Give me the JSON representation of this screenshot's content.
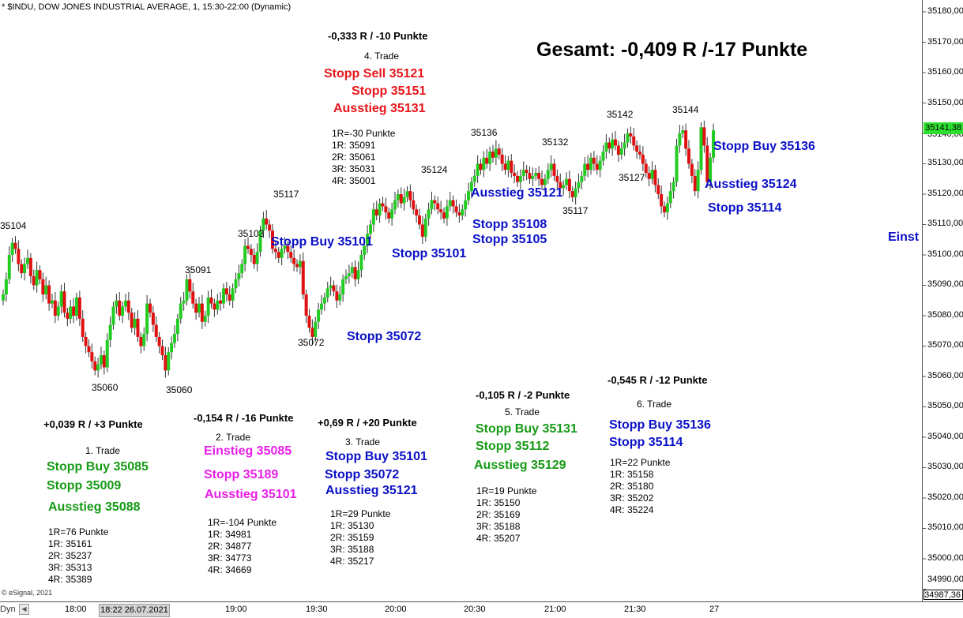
{
  "header": {
    "title": "* $INDU, DOW JONES INDUSTRIAL AVERAGE, 1, 15:30-22:00 (Dynamic)"
  },
  "footer": {
    "copyright": "© eSignal, 2021",
    "mode": "Dyn",
    "cursor_time": "18:22 26.07.2021"
  },
  "total": "Gesamt: -0,409 R /-17 Punkte",
  "price_labels": [
    {
      "text": "35104"
    },
    {
      "text": "35060"
    },
    {
      "text": "35060"
    },
    {
      "text": "35091"
    },
    {
      "text": "35103"
    },
    {
      "text": "35117"
    },
    {
      "text": "35072"
    },
    {
      "text": "35124"
    },
    {
      "text": "35136"
    },
    {
      "text": "35132"
    },
    {
      "text": "35117"
    },
    {
      "text": "35142"
    },
    {
      "text": "35127"
    },
    {
      "text": "35144"
    }
  ],
  "chart_orders": [
    {
      "text": "Stopp Buy 35101",
      "color": "blue"
    },
    {
      "text": "Stopp 35101",
      "color": "blue"
    },
    {
      "text": "Stopp 35072",
      "color": "blue"
    },
    {
      "text": "Ausstieg 35121",
      "color": "blue"
    },
    {
      "text": "Stopp 35108",
      "color": "blue"
    },
    {
      "text": "Stopp 35105",
      "color": "blue"
    },
    {
      "text": "Stopp Buy 35136",
      "color": "blue"
    },
    {
      "text": "Ausstieg 35124",
      "color": "blue"
    },
    {
      "text": "Stopp 35114",
      "color": "blue"
    },
    {
      "text": "Einst",
      "color": "blue"
    }
  ],
  "trades": [
    {
      "result": "+0,039 R / +3 Punkte",
      "name": "1. Trade",
      "color": "green",
      "orders": [
        "Stopp Buy 35085",
        "Stopp 35009",
        "Ausstieg 35088"
      ],
      "plan": "1R=76 Punkte\n1R: 35161\n2R: 35237\n3R: 35313\n4R: 35389"
    },
    {
      "result": "-0,154 R / -16 Punkte",
      "name": "2. Trade",
      "color": "magenta",
      "orders": [
        "Einstieg 35085",
        "Stopp 35189",
        "Ausstieg 35101"
      ],
      "plan": "1R=-104 Punkte\n1R: 34981\n2R: 34877\n3R: 34773\n4R: 34669"
    },
    {
      "result": "+0,69 R / +20 Punkte",
      "name": "3. Trade",
      "color": "blue",
      "orders": [
        "Stopp Buy 35101",
        "Stopp 35072",
        "Ausstieg 35121"
      ],
      "plan": "1R=29 Punkte\n1R: 35130\n2R: 35159\n3R: 35188\n4R: 35217"
    },
    {
      "result": "-0,333 R / -10 Punkte",
      "name": "4. Trade",
      "color": "red",
      "orders": [
        "Stopp Sell 35121",
        "Stopp 35151",
        "Ausstieg 35131"
      ],
      "plan": "1R=-30 Punkte\n1R: 35091\n2R: 35061\n3R: 35031\n4R: 35001"
    },
    {
      "result": "-0,105 R / -2 Punkte",
      "name": "5. Trade",
      "color": "green",
      "orders": [
        "Stopp Buy 35131",
        "Stopp 35112",
        "Ausstieg 35129"
      ],
      "plan": "1R=19 Punkte\n1R: 35150\n2R: 35169\n3R: 35188\n4R: 35207"
    },
    {
      "result": "-0,545 R / -12 Punkte",
      "name": "6. Trade",
      "color": "blue",
      "orders": [
        "Stopp Buy 35136",
        "Stopp 35114"
      ],
      "plan": "1R=22 Punkte\n1R: 35158\n2R: 35180\n3R: 35202\n4R: 35224"
    }
  ],
  "chart_data": {
    "type": "candlestick",
    "title": "* $INDU, DOW JONES INDUSTRIAL AVERAGE, 1, 15:30-22:00 (Dynamic)",
    "ylim": [
      34987.36,
      35182
    ],
    "y_ticks": [
      "35180,00",
      "35170,00",
      "35160,00",
      "35150,00",
      "35140,00",
      "35130,00",
      "35120,00",
      "35110,00",
      "35100,00",
      "35090,00",
      "35080,00",
      "35070,00",
      "35060,00",
      "35050,00",
      "35040,00",
      "35030,00",
      "35020,00",
      "35010,00",
      "35000,00",
      "34990,00"
    ],
    "y_min_label": "34987,36",
    "last_price": "35141,38",
    "x_ticks": [
      "18:00",
      "19:00",
      "19:30",
      "20:00",
      "20:30",
      "21:00",
      "21:30",
      "27"
    ],
    "up_color": "#22cc22",
    "down_color": "#e01010",
    "closes": [
      35087,
      35092,
      35100,
      35104,
      35102,
      35097,
      35094,
      35097,
      35099,
      35093,
      35090,
      35095,
      35092,
      35087,
      35090,
      35084,
      35085,
      35080,
      35083,
      35088,
      35081,
      35079,
      35083,
      35080,
      35086,
      35079,
      35073,
      35070,
      35068,
      35065,
      35062,
      35064,
      35067,
      35063,
      35072,
      35077,
      35083,
      35085,
      35080,
      35083,
      35085,
      35081,
      35076,
      35079,
      35073,
      35070,
      35074,
      35084,
      35081,
      35077,
      35073,
      35070,
      35067,
      35062,
      35068,
      35071,
      35074,
      35079,
      35084,
      35085,
      35092,
      35088,
      35084,
      35081,
      35084,
      35078,
      35080,
      35086,
      35084,
      35082,
      35085,
      35084,
      35089,
      35087,
      35085,
      35089,
      35092,
      35094,
      35097,
      35103,
      35102,
      35100,
      35097,
      35101,
      35108,
      35112,
      35110,
      35108,
      35102,
      35101,
      35099,
      35102,
      35103,
      35101,
      35099,
      35097,
      35096,
      35098,
      35087,
      35080,
      35076,
      35073,
      35078,
      35082,
      35084,
      35086,
      35089,
      35090,
      35088,
      35085,
      35087,
      35092,
      35093,
      35094,
      35096,
      35092,
      35095,
      35100,
      35103,
      35107,
      35110,
      35115,
      35113,
      35117,
      35116,
      35114,
      35112,
      35115,
      35118,
      35120,
      35117,
      35119,
      35121,
      35118,
      35115,
      35113,
      35110,
      35106,
      35112,
      35115,
      35118,
      35117,
      35115,
      35114,
      35112,
      35116,
      35118,
      35116,
      35114,
      35113,
      35115,
      35118,
      35121,
      35124,
      35126,
      35130,
      35128,
      35132,
      35130,
      35134,
      35132,
      35135,
      35133,
      35130,
      35128,
      35131,
      35127,
      35126,
      35124,
      35126,
      35128,
      35127,
      35125,
      35126,
      35127,
      35125,
      35123,
      35125,
      35128,
      35130,
      35126,
      35124,
      35122,
      35123,
      35125,
      35121,
      35119,
      35122,
      35124,
      35126,
      35130,
      35128,
      35132,
      35130,
      35128,
      35131,
      35134,
      35137,
      35135,
      35138,
      35136,
      35133,
      35135,
      35137,
      35140,
      35139,
      35136,
      35134,
      35133,
      35130,
      35127,
      35125,
      35128,
      35123,
      35120,
      35116,
      35114,
      35117,
      35121,
      35124,
      35136,
      35140,
      35141,
      35135,
      35130,
      35126,
      35121,
      35128,
      35142,
      35136,
      35124,
      35132,
      35141
    ]
  }
}
